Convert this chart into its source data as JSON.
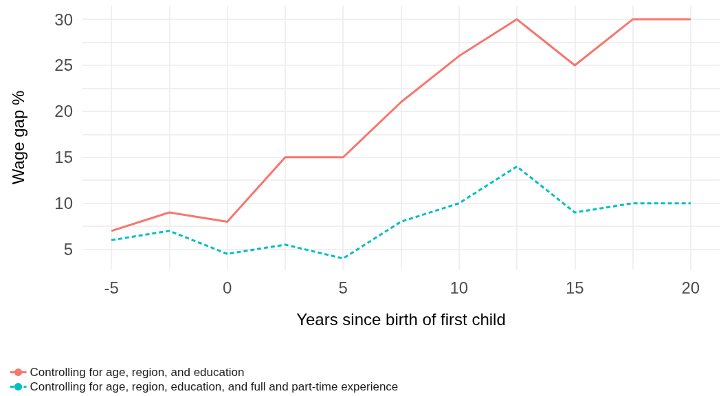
{
  "chart_data": {
    "type": "line",
    "xlabel": "Years since birth of first child",
    "ylabel": "Wage gap %",
    "x": [
      -5,
      -2.5,
      0,
      2.5,
      5,
      7.5,
      10,
      12.5,
      15,
      17.5,
      20
    ],
    "series": [
      {
        "name": "Controlling for age, region, and education",
        "color": "#f8766d",
        "line_style": "solid",
        "values": [
          7,
          9,
          8,
          15,
          15,
          21,
          26,
          30,
          25,
          30,
          30
        ]
      },
      {
        "name": "Controlling for age, region, education, and full and part-time experience",
        "color": "#00bfc4",
        "line_style": "dashed",
        "values": [
          6,
          7,
          4.5,
          5.5,
          4,
          8,
          10,
          14,
          9,
          10,
          10
        ]
      }
    ],
    "xlim": [
      -6.25,
      21.25
    ],
    "ylim": [
      2.8,
      31.5
    ],
    "xticks": [
      -5,
      {
        "value": -2.5,
        "label": null
      },
      0,
      {
        "value": 2.5,
        "label": null
      },
      5,
      {
        "value": 7.5,
        "label": null
      },
      10,
      {
        "value": 12.5,
        "label": null
      },
      15,
      {
        "value": 17.5,
        "label": null
      },
      20
    ],
    "yticks": [
      5,
      {
        "value": 7.5,
        "label": null
      },
      10,
      {
        "value": 12.5,
        "label": null
      },
      15,
      {
        "value": 17.5,
        "label": null
      },
      20,
      {
        "value": 22.5,
        "label": null
      },
      25,
      {
        "value": 27.5,
        "label": null
      },
      30
    ],
    "grid": true,
    "legend": "bottom left",
    "marker": "none"
  }
}
